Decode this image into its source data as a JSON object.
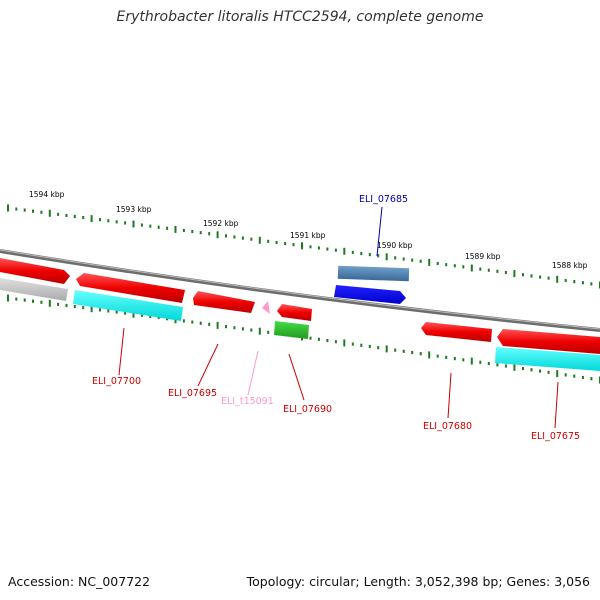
{
  "title": "Erythrobacter litoralis HTCC2594, complete genome",
  "footer": {
    "accession": "Accession: NC_007722",
    "summary": "Topology: circular; Length: 3,052,398 bp; Genes: 3,056"
  },
  "colors": {
    "background": "#ffffff",
    "backbone": "#7a7a7a",
    "ticks": "#1f7a1f",
    "cds": "#ff0000",
    "pseudo": "#c0c0c0",
    "cds_reverse_match": "#00e5e5",
    "rna_gene": "#ff99cc",
    "rna_product": "#33bb33",
    "tick_label": "#000000",
    "blue_feature": "#0000ee",
    "steelblue_feature": "#4f81b0"
  },
  "scale": {
    "unit": "kbp",
    "labels": [
      "1594 kbp",
      "1593 kbp",
      "1592 kbp",
      "1591 kbp",
      "1590 kbp",
      "1589 kbp",
      "1588 kbp"
    ]
  },
  "features": [
    {
      "name": "ELI_07700",
      "color": "#cc0000"
    },
    {
      "name": "ELI_07695",
      "color": "#cc0000"
    },
    {
      "name": "ELI_t15091",
      "color": "#ff99cc"
    },
    {
      "name": "ELI_07690",
      "color": "#cc0000"
    },
    {
      "name": "ELI_07685",
      "color": "#0000aa"
    },
    {
      "name": "ELI_07680",
      "color": "#cc0000"
    },
    {
      "name": "ELI_07675",
      "color": "#cc0000"
    }
  ]
}
